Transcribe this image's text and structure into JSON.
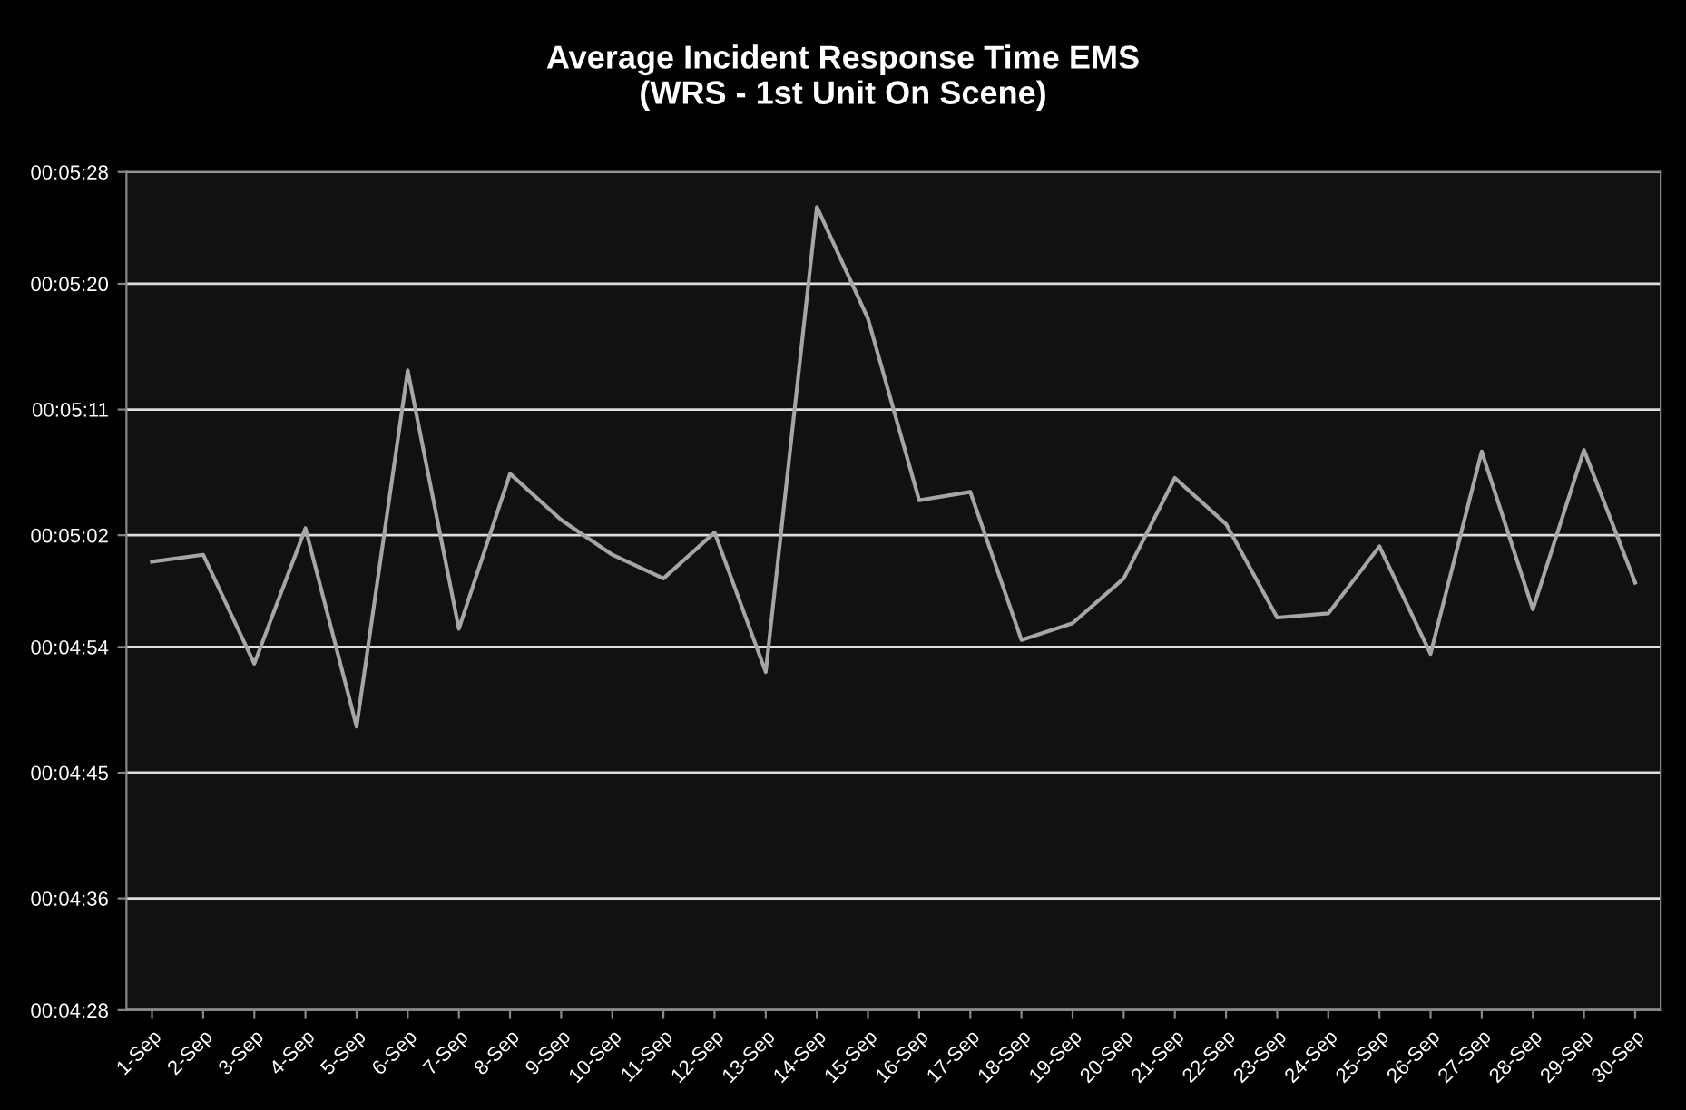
{
  "chart_data": {
    "type": "line",
    "title": "Average Incident Response Time EMS\n(WRS - 1st Unit On Scene)",
    "categories": [
      "1-Sep",
      "2-Sep",
      "3-Sep",
      "4-Sep",
      "5-Sep",
      "6-Sep",
      "7-Sep",
      "8-Sep",
      "9-Sep",
      "10-Sep",
      "11-Sep",
      "12-Sep",
      "13-Sep",
      "14-Sep",
      "15-Sep",
      "16-Sep",
      "17-Sep",
      "18-Sep",
      "19-Sep",
      "20-Sep",
      "21-Sep",
      "22-Sep",
      "23-Sep",
      "24-Sep",
      "25-Sep",
      "26-Sep",
      "27-Sep",
      "28-Sep",
      "29-Sep",
      "30-Sep"
    ],
    "series": [
      {
        "color": "#a6a6a6",
        "values": [
          300.1,
          300.6,
          292.8,
          302.5,
          288.3,
          313.8,
          295.3,
          306.4,
          303.1,
          300.6,
          298.9,
          302.2,
          292.2,
          325.5,
          317.5,
          304.5,
          305.1,
          294.5,
          295.7,
          298.9,
          306.1,
          302.8,
          296.1,
          296.4,
          301.2,
          293.5,
          308.0,
          296.7,
          308.1,
          298.6
        ]
      }
    ],
    "ylim": [
      268,
      328
    ],
    "yticks": [
      {
        "value": 268,
        "label": "00:04:28"
      },
      {
        "value": 276,
        "label": "00:04:36"
      },
      {
        "value": 285,
        "label": "00:04:45"
      },
      {
        "value": 294,
        "label": "00:04:54"
      },
      {
        "value": 302,
        "label": "00:05:02"
      },
      {
        "value": 311,
        "label": "00:05:11"
      },
      {
        "value": 320,
        "label": "00:05:20"
      },
      {
        "value": 328,
        "label": "00:05:28"
      }
    ],
    "grid": "y",
    "marker": "none",
    "line_style": "solid",
    "legend": false
  }
}
